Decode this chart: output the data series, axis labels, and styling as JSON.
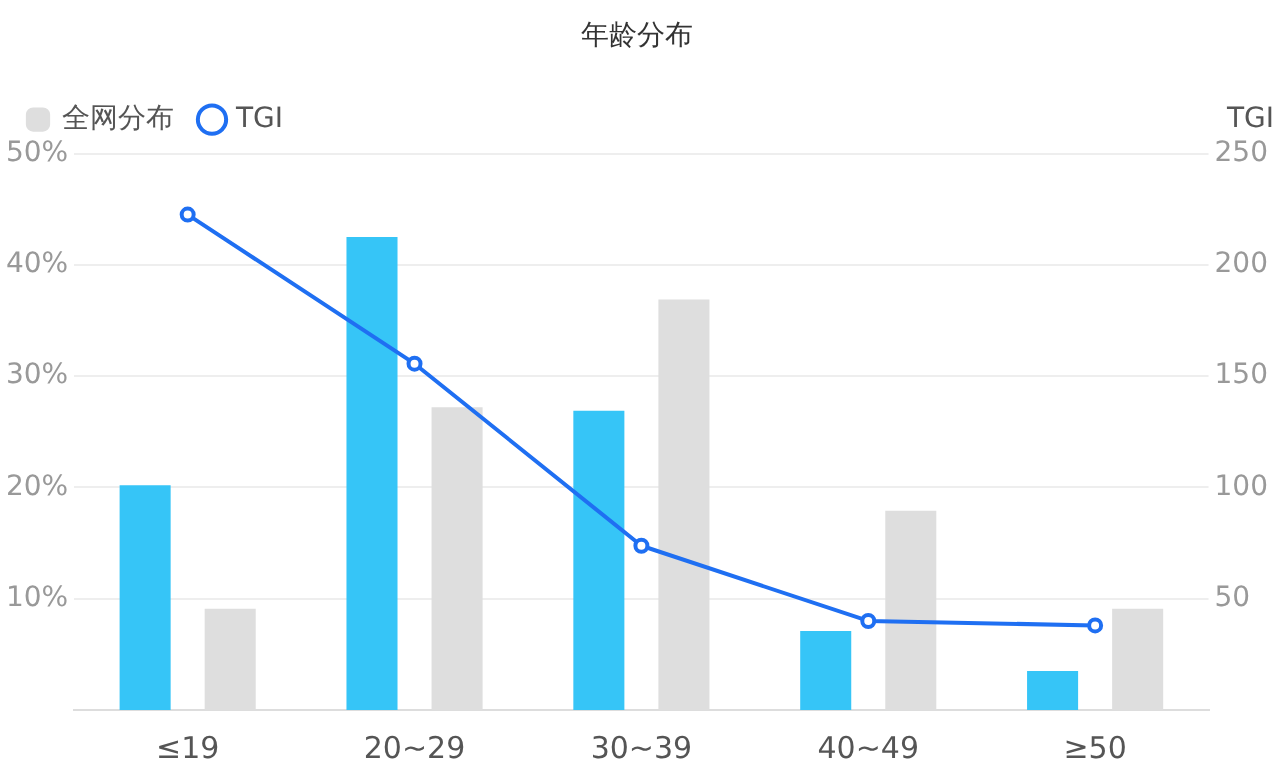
{
  "chart_data": {
    "type": "bar",
    "title": "年龄分布",
    "categories": [
      "≤19",
      "20~29",
      "30~39",
      "40~49",
      "≥50"
    ],
    "series": [
      {
        "color": "#36c5f7",
        "values": [
          20.2,
          42.5,
          26.9,
          7.1,
          3.5
        ]
      },
      {
        "name": "全网分布",
        "color": "#dedede",
        "values": [
          9.1,
          27.2,
          36.9,
          17.9,
          9.1
        ]
      },
      {
        "name": "TGI",
        "type": "line",
        "axis": "y2",
        "color": "#1f6ff2",
        "marker": "circle",
        "values": [
          222.6,
          155.6,
          73.8,
          40,
          38
        ]
      }
    ],
    "ylim": [
      0,
      50
    ],
    "yticks": [
      {
        "value": 10,
        "label": "10%"
      },
      {
        "value": 20,
        "label": "20%"
      },
      {
        "value": 30,
        "label": "30%"
      },
      {
        "value": 40,
        "label": "40%"
      },
      {
        "value": 50,
        "label": "50%"
      }
    ],
    "y2label": "TGI",
    "y2lim": [
      0,
      250
    ],
    "y2ticks": [
      50,
      100,
      150,
      200,
      250
    ],
    "grid": "y",
    "legend": "top left"
  }
}
